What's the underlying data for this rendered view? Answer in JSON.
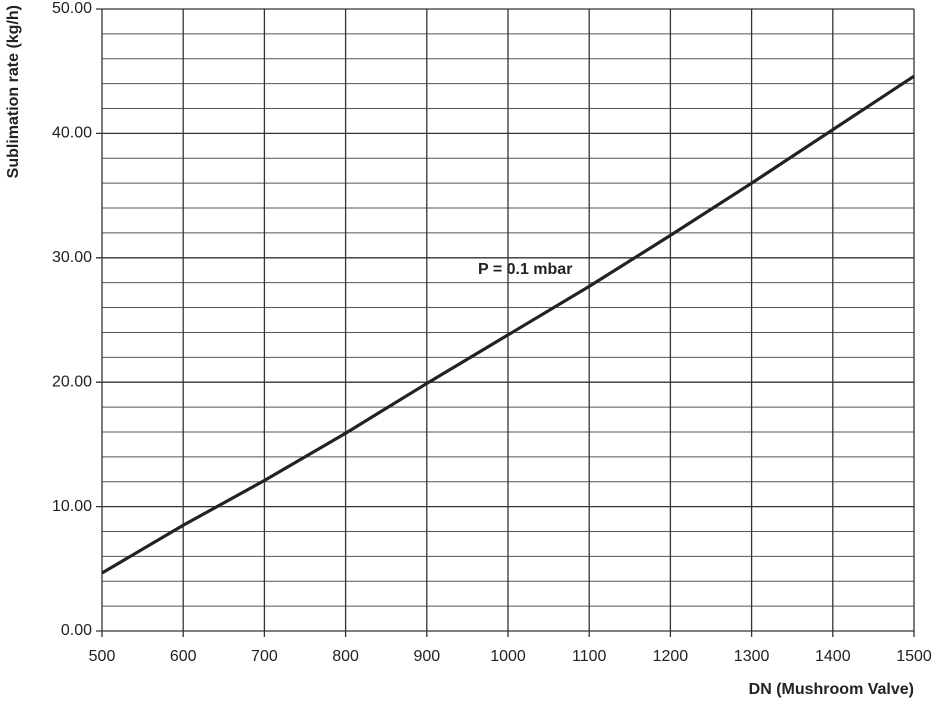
{
  "chart_data": {
    "type": "line",
    "x_label": "DN (Mushroom Valve)",
    "y_label": "Sublimation rate (kg/h)",
    "annotation": "P = 0.1 mbar",
    "x": [
      500,
      600,
      700,
      800,
      900,
      1000,
      1100,
      1200,
      1300,
      1400,
      1500
    ],
    "series": [
      {
        "name": "P = 0.1 mbar",
        "color": "#222222",
        "values": [
          4.66,
          8.5,
          12.1,
          15.9,
          19.9,
          23.8,
          27.7,
          31.8,
          36.0,
          40.3,
          44.6
        ]
      }
    ],
    "xlim": [
      500,
      1500
    ],
    "xticks": [
      500,
      600,
      700,
      800,
      900,
      1000,
      1100,
      1200,
      1300,
      1400,
      1500
    ],
    "ylim": [
      0,
      50
    ],
    "yticks": [
      {
        "value": 0,
        "label": "0.00"
      },
      {
        "value": 10,
        "label": "10.00"
      },
      {
        "value": 20,
        "label": "20.00"
      },
      {
        "value": 30,
        "label": "30.00"
      },
      {
        "value": 40,
        "label": "40.00"
      },
      {
        "value": 50,
        "label": "50.00"
      }
    ],
    "y_minor_grid": [
      2,
      4,
      6,
      8,
      12,
      14,
      16,
      18,
      22,
      24,
      26,
      28,
      32,
      34,
      36,
      38,
      42,
      44,
      46,
      48
    ],
    "grid": true
  }
}
